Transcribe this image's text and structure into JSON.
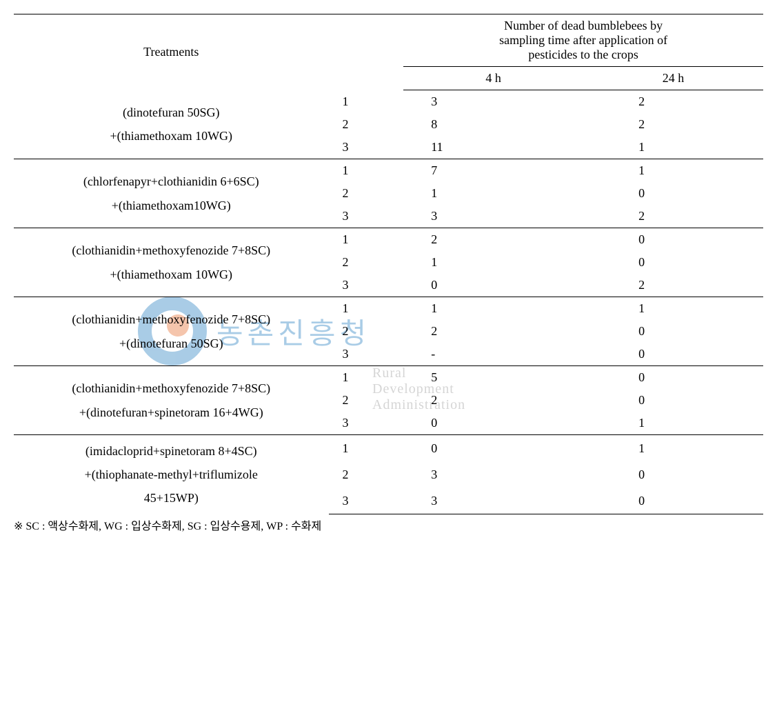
{
  "header": {
    "treatments_label": "Treatments",
    "group_label_line1": "Number of dead bumblebees by",
    "group_label_line2": "sampling time after application of",
    "group_label_line3": "pesticides to the crops",
    "col_4h": "4 h",
    "col_24h": "24 h"
  },
  "groups": [
    {
      "treatment_line1": "(dinotefuran 50SG)",
      "treatment_line2": "+(thiamethoxam 10WG)",
      "rows": [
        {
          "rep": "1",
          "v4h": "3",
          "v24h": "2"
        },
        {
          "rep": "2",
          "v4h": "8",
          "v24h": "2"
        },
        {
          "rep": "3",
          "v4h": "11",
          "v24h": "1"
        }
      ]
    },
    {
      "treatment_line1": "(chlorfenapyr+clothianidin 6+6SC)",
      "treatment_line2": "+(thiamethoxam10WG)",
      "rows": [
        {
          "rep": "1",
          "v4h": "7",
          "v24h": "1"
        },
        {
          "rep": "2",
          "v4h": "1",
          "v24h": "0"
        },
        {
          "rep": "3",
          "v4h": "3",
          "v24h": "2"
        }
      ]
    },
    {
      "treatment_line1": "(clothianidin+methoxyfenozide 7+8SC)",
      "treatment_line2": "+(thiamethoxam 10WG)",
      "rows": [
        {
          "rep": "1",
          "v4h": "2",
          "v24h": "0"
        },
        {
          "rep": "2",
          "v4h": "1",
          "v24h": "0"
        },
        {
          "rep": "3",
          "v4h": "0",
          "v24h": "2"
        }
      ]
    },
    {
      "treatment_line1": "(clothianidin+methoxyfenozide 7+8SC)",
      "treatment_line2": "+(dinotefuran 50SG)",
      "rows": [
        {
          "rep": "1",
          "v4h": "1",
          "v24h": "1"
        },
        {
          "rep": "2",
          "v4h": "2",
          "v24h": "0"
        },
        {
          "rep": "3",
          "v4h": "-",
          "v24h": "0"
        }
      ]
    },
    {
      "treatment_line1": "(clothianidin+methoxyfenozide 7+8SC)",
      "treatment_line2": "+(dinotefuran+spinetoram 16+4WG)",
      "rows": [
        {
          "rep": "1",
          "v4h": "5",
          "v24h": "0"
        },
        {
          "rep": "2",
          "v4h": "2",
          "v24h": "0"
        },
        {
          "rep": "3",
          "v4h": "0",
          "v24h": "1"
        }
      ]
    },
    {
      "treatment_line1": "(imidacloprid+spinetoram 8+4SC)",
      "treatment_line2": "+(thiophanate-methyl+triflumizole",
      "treatment_line3": "45+15WP)",
      "rows": [
        {
          "rep": "1",
          "v4h": "0",
          "v24h": "1"
        },
        {
          "rep": "2",
          "v4h": "3",
          "v24h": "0"
        },
        {
          "rep": "3",
          "v4h": "3",
          "v24h": "0"
        }
      ]
    }
  ],
  "footnote": "※ SC : 액상수화제, WG : 입상수화제, SG : 입상수용제, WP : 수화제",
  "watermark": {
    "kr": "농촌진흥청",
    "en": "Rural Development Administration"
  }
}
